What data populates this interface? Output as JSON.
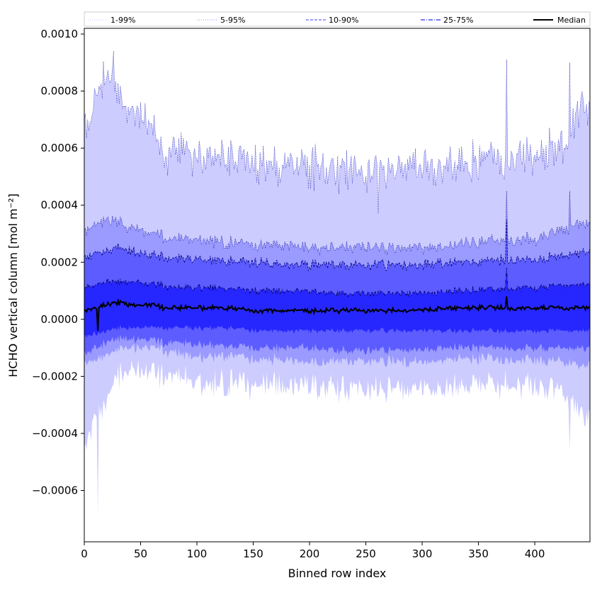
{
  "chart_data": {
    "type": "area",
    "title": "",
    "xlabel": "Binned row index",
    "ylabel": "HCHO vertical column [mol m⁻²]",
    "xlim": [
      0,
      449
    ],
    "ylim": [
      -0.00078,
      0.00102
    ],
    "xticks": [
      0,
      50,
      100,
      150,
      200,
      250,
      300,
      350,
      400
    ],
    "xtick_labels": [
      "0",
      "50",
      "100",
      "150",
      "200",
      "250",
      "300",
      "350",
      "400"
    ],
    "yticks": [
      -0.0006,
      -0.0004,
      -0.0002,
      0.0,
      0.0002,
      0.0004,
      0.0006,
      0.0008,
      0.001
    ],
    "ytick_labels": [
      "−0.0006",
      "−0.0004",
      "−0.0002",
      "0.0000",
      "0.0002",
      "0.0004",
      "0.0006",
      "0.0008",
      "0.0010"
    ],
    "legend": {
      "placement": "top, above plot, single row",
      "entries": [
        {
          "label": "1-99%",
          "style": "dotted",
          "color": "#c8c8ff"
        },
        {
          "label": "5-95%",
          "style": "dotted",
          "color": "#8c8cff"
        },
        {
          "label": "10-90%",
          "style": "dashed",
          "color": "#6464ff"
        },
        {
          "label": "25-75%",
          "style": "dashdot",
          "color": "#2828ff"
        },
        {
          "label": "Median",
          "style": "solid",
          "color": "#000000"
        }
      ]
    },
    "x_anchor": [
      0,
      10,
      20,
      30,
      40,
      50,
      60,
      70,
      80,
      100,
      125,
      150,
      175,
      200,
      225,
      250,
      275,
      300,
      325,
      350,
      375,
      400,
      425,
      440,
      449
    ],
    "series": [
      {
        "name": "Median",
        "values": [
          3e-05,
          4e-05,
          5e-05,
          6e-05,
          5e-05,
          5e-05,
          5e-05,
          4e-05,
          4e-05,
          4e-05,
          4e-05,
          3e-05,
          3e-05,
          3e-05,
          3e-05,
          3e-05,
          3e-05,
          3e-05,
          4e-05,
          4e-05,
          4e-05,
          4e-05,
          4e-05,
          4e-05,
          4e-05
        ]
      },
      {
        "name": "p25",
        "values": [
          -6e-05,
          -5e-05,
          -4e-05,
          -3e-05,
          -3e-05,
          -3e-05,
          -3e-05,
          -3e-05,
          -3e-05,
          -3e-05,
          -3e-05,
          -4e-05,
          -4e-05,
          -4e-05,
          -4e-05,
          -4e-05,
          -4e-05,
          -4e-05,
          -4e-05,
          -4e-05,
          -4e-05,
          -4e-05,
          -4e-05,
          -4e-05,
          -4e-05
        ]
      },
      {
        "name": "p75",
        "values": [
          0.00011,
          0.00012,
          0.00013,
          0.00013,
          0.00013,
          0.00013,
          0.00012,
          0.00012,
          0.00011,
          0.00011,
          0.00011,
          0.0001,
          0.0001,
          0.0001,
          9e-05,
          9e-05,
          9e-05,
          9e-05,
          0.0001,
          0.0001,
          0.00011,
          0.00011,
          0.00012,
          0.00012,
          0.00012
        ]
      },
      {
        "name": "p10",
        "values": [
          -0.00012,
          -0.0001,
          -8e-05,
          -7e-05,
          -7e-05,
          -7e-05,
          -7e-05,
          -8e-05,
          -8e-05,
          -9e-05,
          -9e-05,
          -0.0001,
          -0.0001,
          -0.0001,
          -0.00011,
          -0.00011,
          -0.00011,
          -0.00011,
          -0.0001,
          -0.0001,
          -0.0001,
          -0.0001,
          -0.0001,
          -0.0001,
          -0.0001
        ]
      },
      {
        "name": "p90",
        "values": [
          0.00021,
          0.00023,
          0.00024,
          0.00025,
          0.00024,
          0.00023,
          0.00022,
          0.00022,
          0.00021,
          0.00021,
          0.0002,
          0.0002,
          0.00019,
          0.00019,
          0.00019,
          0.00019,
          0.00019,
          0.00019,
          0.0002,
          0.0002,
          0.00021,
          0.00021,
          0.00022,
          0.00023,
          0.00023
        ]
      },
      {
        "name": "p5",
        "values": [
          -0.00016,
          -0.00014,
          -0.00012,
          -0.00011,
          -0.0001,
          -0.0001,
          -0.0001,
          -0.00011,
          -0.00012,
          -0.00013,
          -0.00013,
          -0.00014,
          -0.00014,
          -0.00015,
          -0.00015,
          -0.00015,
          -0.00015,
          -0.00015,
          -0.00014,
          -0.00014,
          -0.00014,
          -0.00014,
          -0.00015,
          -0.00016,
          -0.00016
        ]
      },
      {
        "name": "p95",
        "values": [
          0.0003,
          0.00033,
          0.00035,
          0.00034,
          0.00032,
          0.00031,
          0.0003,
          0.00029,
          0.00028,
          0.00028,
          0.00027,
          0.00026,
          0.00026,
          0.00025,
          0.00025,
          0.00025,
          0.00025,
          0.00025,
          0.00026,
          0.00027,
          0.00028,
          0.00028,
          0.00031,
          0.00034,
          0.00033
        ]
      },
      {
        "name": "p1",
        "values": [
          -0.00045,
          -0.00035,
          -0.00028,
          -0.0002,
          -0.00018,
          -0.00018,
          -0.00019,
          -0.0002,
          -0.00021,
          -0.00022,
          -0.00022,
          -0.00023,
          -0.00023,
          -0.00024,
          -0.00024,
          -0.00025,
          -0.00025,
          -0.00025,
          -0.00024,
          -0.00023,
          -0.00023,
          -0.00023,
          -0.00025,
          -0.00033,
          -0.00035
        ]
      },
      {
        "name": "p99",
        "values": [
          0.00066,
          0.00076,
          0.00085,
          0.0008,
          0.00072,
          0.00072,
          0.00066,
          0.00059,
          0.00058,
          0.00058,
          0.00057,
          0.00055,
          0.00054,
          0.00053,
          0.00052,
          0.00051,
          0.00052,
          0.00053,
          0.00053,
          0.00055,
          0.00056,
          0.00058,
          0.0006,
          0.00074,
          0.00072
        ]
      }
    ],
    "spikes": [
      {
        "x": 12,
        "p1": -0.00068,
        "median": -4e-05
      },
      {
        "x": 26,
        "p99": 0.00094
      },
      {
        "x": 375,
        "p99": 0.00091,
        "p95": 0.00045,
        "p90": 0.00035,
        "p75": 0.00018,
        "median": 8e-05
      },
      {
        "x": 431,
        "p99": 0.0009,
        "p95": 0.00045,
        "p1": -0.00046
      },
      {
        "x": 261,
        "p99": 0.00037,
        "p1": -0.00027
      }
    ],
    "band_colors": {
      "p1_p99": "#ccccff",
      "p5_p95": "#9a9aff",
      "p10_p90": "#5c5cff",
      "p25_p75": "#2626ff",
      "p99_line": "#0000aa",
      "p95_line": "#00008a",
      "p90_line": "#000080",
      "p75_line": "#000060",
      "median_line": "#000000"
    }
  }
}
